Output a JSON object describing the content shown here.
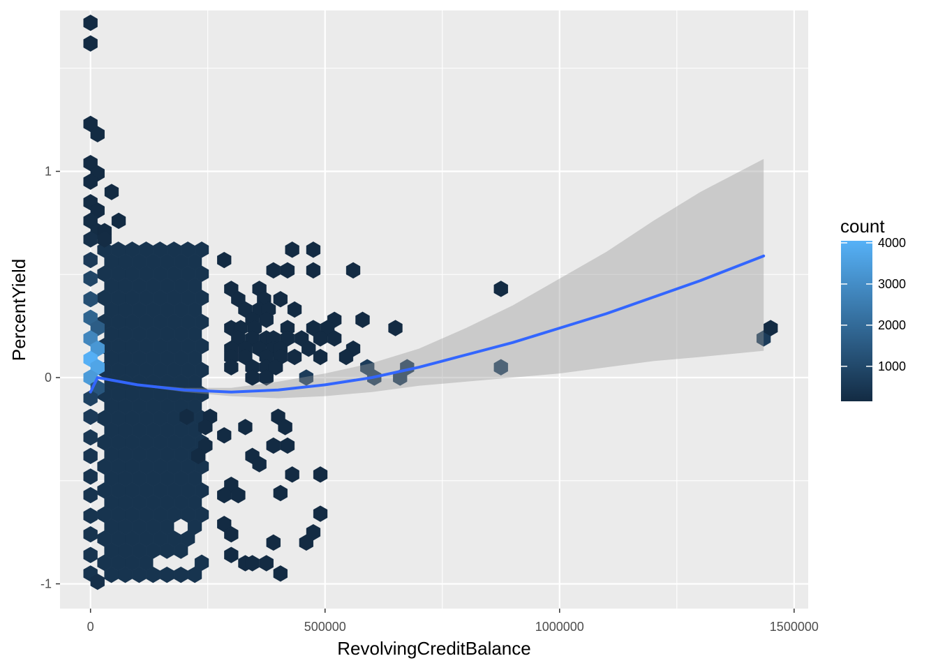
{
  "chart_data": {
    "type": "hexbin",
    "xlabel": "RevolvingCreditBalance",
    "ylabel": "PercentYield",
    "xlim": [
      -65000,
      1530000
    ],
    "ylim": [
      -1.12,
      1.78
    ],
    "x_ticks": [
      0,
      500000,
      1000000,
      1500000
    ],
    "x_tick_labels": [
      "0",
      "500000",
      "1000000",
      "1500000"
    ],
    "y_ticks": [
      -1,
      0,
      1
    ],
    "y_tick_labels": [
      "-1",
      "0",
      "1"
    ],
    "grid": true,
    "legend": {
      "title": "count",
      "position": "right",
      "ticks": [
        1000,
        2000,
        3000,
        4000
      ],
      "tick_labels": [
        "1000",
        "2000",
        "3000",
        "4000"
      ],
      "range": [
        150,
        4050
      ],
      "color_low": "#132B43",
      "color_high": "#56B1F7"
    },
    "dense_block": {
      "x_range": [
        0,
        250000
      ],
      "y_range": [
        -0.99,
        0.62
      ],
      "typical_count": 400
    },
    "hexes": [
      {
        "x": 0,
        "y": 1.72,
        "count": 120
      },
      {
        "x": 0,
        "y": 1.62,
        "count": 120
      },
      {
        "x": 0,
        "y": 1.23,
        "count": 150
      },
      {
        "x": 15000,
        "y": 1.18,
        "count": 120
      },
      {
        "x": 0,
        "y": 1.04,
        "count": 150
      },
      {
        "x": 15000,
        "y": 0.99,
        "count": 120
      },
      {
        "x": 0,
        "y": 0.95,
        "count": 150
      },
      {
        "x": 45000,
        "y": 0.9,
        "count": 120
      },
      {
        "x": 0,
        "y": 0.85,
        "count": 180
      },
      {
        "x": 15000,
        "y": 0.81,
        "count": 130
      },
      {
        "x": 0,
        "y": 0.76,
        "count": 200
      },
      {
        "x": 60000,
        "y": 0.76,
        "count": 130
      },
      {
        "x": 15000,
        "y": 0.71,
        "count": 200
      },
      {
        "x": 30000,
        "y": 0.71,
        "count": 150
      },
      {
        "x": 0,
        "y": 0.67,
        "count": 300
      },
      {
        "x": 30000,
        "y": 0.67,
        "count": 180
      },
      {
        "x": 0,
        "y": 0.57,
        "count": 600
      },
      {
        "x": 0,
        "y": 0.48,
        "count": 900
      },
      {
        "x": 0,
        "y": 0.38,
        "count": 1200
      },
      {
        "x": 0,
        "y": 0.29,
        "count": 1800
      },
      {
        "x": 15000,
        "y": 0.24,
        "count": 1600
      },
      {
        "x": 0,
        "y": 0.19,
        "count": 2800
      },
      {
        "x": 15000,
        "y": 0.14,
        "count": 3300
      },
      {
        "x": 0,
        "y": 0.09,
        "count": 4000
      },
      {
        "x": 15000,
        "y": 0.05,
        "count": 3700
      },
      {
        "x": 0,
        "y": 0.0,
        "count": 3400
      },
      {
        "x": 15000,
        "y": -0.05,
        "count": 1400
      },
      {
        "x": 0,
        "y": -0.1,
        "count": 800
      },
      {
        "x": 0,
        "y": -0.19,
        "count": 600
      },
      {
        "x": 0,
        "y": -0.29,
        "count": 500
      },
      {
        "x": 0,
        "y": -0.38,
        "count": 450
      },
      {
        "x": 0,
        "y": -0.48,
        "count": 400
      },
      {
        "x": 0,
        "y": -0.57,
        "count": 400
      },
      {
        "x": 0,
        "y": -0.67,
        "count": 400
      },
      {
        "x": 0,
        "y": -0.76,
        "count": 400
      },
      {
        "x": 0,
        "y": -0.86,
        "count": 400
      },
      {
        "x": 0,
        "y": -0.95,
        "count": 400
      },
      {
        "x": 15000,
        "y": -0.99,
        "count": 300
      },
      {
        "x": 285000,
        "y": 0.57,
        "count": 120
      },
      {
        "x": 430000,
        "y": 0.62,
        "count": 120
      },
      {
        "x": 475000,
        "y": 0.62,
        "count": 120
      },
      {
        "x": 390000,
        "y": 0.52,
        "count": 120
      },
      {
        "x": 420000,
        "y": 0.52,
        "count": 120
      },
      {
        "x": 475000,
        "y": 0.52,
        "count": 120
      },
      {
        "x": 560000,
        "y": 0.52,
        "count": 120
      },
      {
        "x": 300000,
        "y": 0.43,
        "count": 120
      },
      {
        "x": 360000,
        "y": 0.43,
        "count": 120
      },
      {
        "x": 315000,
        "y": 0.38,
        "count": 120
      },
      {
        "x": 370000,
        "y": 0.38,
        "count": 120
      },
      {
        "x": 405000,
        "y": 0.38,
        "count": 120
      },
      {
        "x": 330000,
        "y": 0.33,
        "count": 120
      },
      {
        "x": 360000,
        "y": 0.33,
        "count": 120
      },
      {
        "x": 380000,
        "y": 0.33,
        "count": 120
      },
      {
        "x": 435000,
        "y": 0.33,
        "count": 120
      },
      {
        "x": 345000,
        "y": 0.28,
        "count": 120
      },
      {
        "x": 375000,
        "y": 0.28,
        "count": 120
      },
      {
        "x": 520000,
        "y": 0.28,
        "count": 120
      },
      {
        "x": 580000,
        "y": 0.28,
        "count": 120
      },
      {
        "x": 300000,
        "y": 0.24,
        "count": 120
      },
      {
        "x": 320000,
        "y": 0.24,
        "count": 120
      },
      {
        "x": 350000,
        "y": 0.24,
        "count": 120
      },
      {
        "x": 420000,
        "y": 0.24,
        "count": 120
      },
      {
        "x": 475000,
        "y": 0.24,
        "count": 120
      },
      {
        "x": 505000,
        "y": 0.24,
        "count": 120
      },
      {
        "x": 650000,
        "y": 0.24,
        "count": 120
      },
      {
        "x": 315000,
        "y": 0.19,
        "count": 120
      },
      {
        "x": 345000,
        "y": 0.19,
        "count": 120
      },
      {
        "x": 375000,
        "y": 0.19,
        "count": 120
      },
      {
        "x": 390000,
        "y": 0.19,
        "count": 120
      },
      {
        "x": 420000,
        "y": 0.19,
        "count": 120
      },
      {
        "x": 450000,
        "y": 0.19,
        "count": 120
      },
      {
        "x": 490000,
        "y": 0.19,
        "count": 120
      },
      {
        "x": 520000,
        "y": 0.19,
        "count": 120
      },
      {
        "x": 300000,
        "y": 0.14,
        "count": 120
      },
      {
        "x": 330000,
        "y": 0.14,
        "count": 120
      },
      {
        "x": 360000,
        "y": 0.14,
        "count": 120
      },
      {
        "x": 390000,
        "y": 0.14,
        "count": 120
      },
      {
        "x": 405000,
        "y": 0.14,
        "count": 120
      },
      {
        "x": 465000,
        "y": 0.14,
        "count": 120
      },
      {
        "x": 560000,
        "y": 0.14,
        "count": 120
      },
      {
        "x": 300000,
        "y": 0.1,
        "count": 120
      },
      {
        "x": 330000,
        "y": 0.1,
        "count": 120
      },
      {
        "x": 375000,
        "y": 0.1,
        "count": 120
      },
      {
        "x": 405000,
        "y": 0.1,
        "count": 120
      },
      {
        "x": 435000,
        "y": 0.1,
        "count": 120
      },
      {
        "x": 490000,
        "y": 0.1,
        "count": 120
      },
      {
        "x": 545000,
        "y": 0.1,
        "count": 120
      },
      {
        "x": 300000,
        "y": 0.05,
        "count": 120
      },
      {
        "x": 345000,
        "y": 0.05,
        "count": 120
      },
      {
        "x": 375000,
        "y": 0.05,
        "count": 120
      },
      {
        "x": 395000,
        "y": 0.05,
        "count": 120
      },
      {
        "x": 590000,
        "y": 0.05,
        "count": 650
      },
      {
        "x": 675000,
        "y": 0.05,
        "count": 650
      },
      {
        "x": 875000,
        "y": 0.05,
        "count": 800
      },
      {
        "x": 345000,
        "y": 0.0,
        "count": 120
      },
      {
        "x": 375000,
        "y": 0.0,
        "count": 120
      },
      {
        "x": 460000,
        "y": 0.0,
        "count": 650
      },
      {
        "x": 605000,
        "y": 0.0,
        "count": 650
      },
      {
        "x": 660000,
        "y": 0.0,
        "count": 650
      },
      {
        "x": 875000,
        "y": 0.43,
        "count": 120
      },
      {
        "x": 1435000,
        "y": 0.19,
        "count": 650
      },
      {
        "x": 1450000,
        "y": 0.24,
        "count": 120
      },
      {
        "x": 205000,
        "y": -0.19,
        "count": 120
      },
      {
        "x": 255000,
        "y": -0.19,
        "count": 120
      },
      {
        "x": 400000,
        "y": -0.19,
        "count": 120
      },
      {
        "x": 245000,
        "y": -0.24,
        "count": 120
      },
      {
        "x": 330000,
        "y": -0.24,
        "count": 120
      },
      {
        "x": 415000,
        "y": -0.24,
        "count": 120
      },
      {
        "x": 285000,
        "y": -0.28,
        "count": 120
      },
      {
        "x": 245000,
        "y": -0.33,
        "count": 120
      },
      {
        "x": 390000,
        "y": -0.33,
        "count": 120
      },
      {
        "x": 420000,
        "y": -0.33,
        "count": 120
      },
      {
        "x": 230000,
        "y": -0.38,
        "count": 120
      },
      {
        "x": 345000,
        "y": -0.38,
        "count": 120
      },
      {
        "x": 360000,
        "y": -0.42,
        "count": 120
      },
      {
        "x": 430000,
        "y": -0.47,
        "count": 120
      },
      {
        "x": 490000,
        "y": -0.47,
        "count": 120
      },
      {
        "x": 300000,
        "y": -0.52,
        "count": 120
      },
      {
        "x": 405000,
        "y": -0.56,
        "count": 120
      },
      {
        "x": 285000,
        "y": -0.57,
        "count": 120
      },
      {
        "x": 315000,
        "y": -0.57,
        "count": 120
      },
      {
        "x": 490000,
        "y": -0.66,
        "count": 120
      },
      {
        "x": 285000,
        "y": -0.71,
        "count": 120
      },
      {
        "x": 475000,
        "y": -0.75,
        "count": 120
      },
      {
        "x": 300000,
        "y": -0.76,
        "count": 120
      },
      {
        "x": 390000,
        "y": -0.8,
        "count": 120
      },
      {
        "x": 460000,
        "y": -0.8,
        "count": 120
      },
      {
        "x": 300000,
        "y": -0.86,
        "count": 120
      },
      {
        "x": 330000,
        "y": -0.9,
        "count": 120
      },
      {
        "x": 345000,
        "y": -0.9,
        "count": 120
      },
      {
        "x": 375000,
        "y": -0.9,
        "count": 120
      },
      {
        "x": 405000,
        "y": -0.95,
        "count": 120
      }
    ],
    "dense_block_holes": [
      {
        "x": 195000,
        "y": -0.71
      },
      {
        "x": 245000,
        "y": -0.76
      },
      {
        "x": 165000,
        "y": -0.9
      },
      {
        "x": 210000,
        "y": -0.86
      },
      {
        "x": 270000,
        "y": -0.05
      },
      {
        "x": 255000,
        "y": -0.95
      }
    ],
    "smooth": {
      "color": "#3366FF",
      "x": [
        0,
        15000,
        100000,
        200000,
        300000,
        400000,
        500000,
        600000,
        700000,
        800000,
        900000,
        1000000,
        1100000,
        1200000,
        1300000,
        1435000
      ],
      "y": [
        -0.07,
        0.0,
        -0.035,
        -0.06,
        -0.07,
        -0.06,
        -0.035,
        0.0,
        0.05,
        0.11,
        0.17,
        0.24,
        0.31,
        0.39,
        0.47,
        0.59
      ],
      "ci_lower": [
        -0.07,
        0.0,
        -0.04,
        -0.07,
        -0.09,
        -0.1,
        -0.09,
        -0.07,
        -0.04,
        -0.02,
        0.0,
        0.02,
        0.05,
        0.08,
        0.1,
        0.13
      ],
      "ci_upper": [
        -0.07,
        0.0,
        -0.03,
        -0.05,
        -0.05,
        -0.02,
        0.02,
        0.07,
        0.14,
        0.24,
        0.35,
        0.48,
        0.61,
        0.76,
        0.9,
        1.06
      ]
    }
  }
}
